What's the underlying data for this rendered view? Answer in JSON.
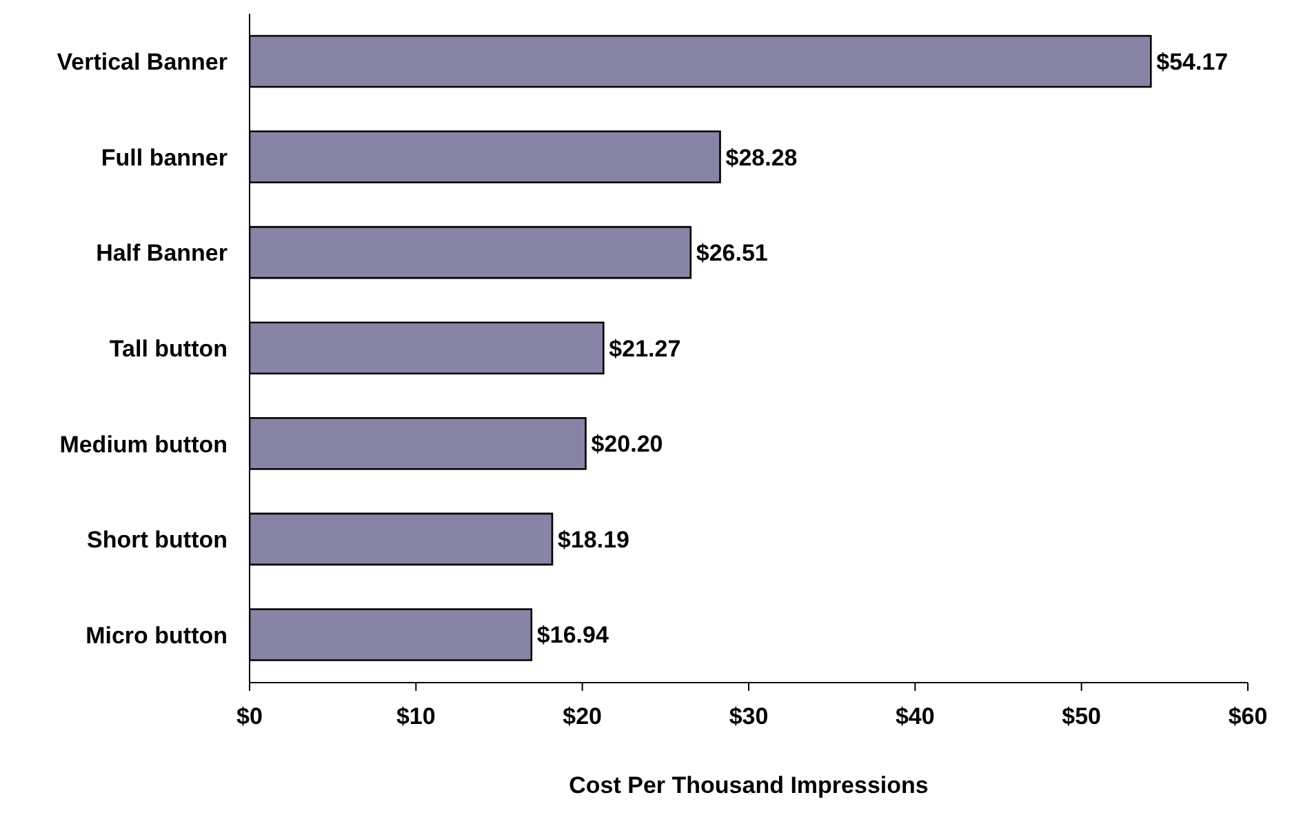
{
  "chart_data": {
    "type": "bar",
    "orientation": "horizontal",
    "xlabel": "Cost Per Thousand Impressions",
    "categories": [
      "Vertical Banner",
      "Full banner",
      "Half Banner",
      "Tall button",
      "Medium button",
      "Short button",
      "Micro button"
    ],
    "values": [
      54.17,
      28.28,
      26.51,
      21.27,
      20.2,
      18.19,
      16.94
    ],
    "value_labels": [
      "$54.17",
      "$28.28",
      "$26.51",
      "$21.27",
      "$20.20",
      "$18.19",
      "$16.94"
    ],
    "color": "#8884a6",
    "xlim": [
      0,
      60
    ],
    "xticks": [
      {
        "value": 0,
        "label": "$0"
      },
      {
        "value": 10,
        "label": "$10"
      },
      {
        "value": 20,
        "label": "$20"
      },
      {
        "value": 30,
        "label": "$30"
      },
      {
        "value": 40,
        "label": "$40"
      },
      {
        "value": 50,
        "label": "$50"
      },
      {
        "value": 60,
        "label": "$60"
      }
    ],
    "grid": false,
    "legend": false
  }
}
